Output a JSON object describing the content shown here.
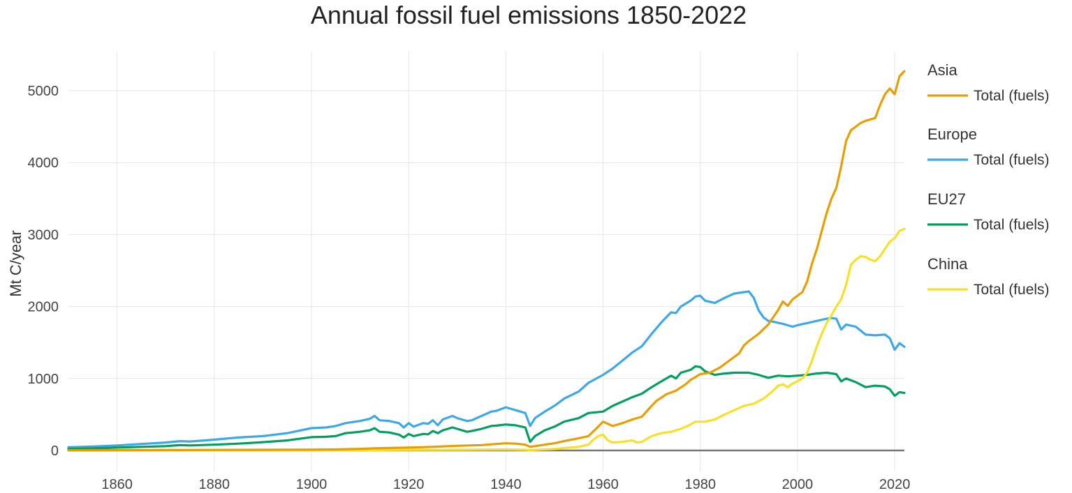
{
  "chart_data": {
    "type": "line",
    "title": "Annual fossil fuel emissions 1850-2022",
    "xlabel": "",
    "ylabel": "Mt C/year",
    "xlim": [
      1850,
      2022
    ],
    "ylim": [
      -100,
      5400
    ],
    "x_ticks": [
      1860,
      1880,
      1900,
      1920,
      1940,
      1960,
      1980,
      2000,
      2020
    ],
    "y_ticks": [
      0,
      1000,
      2000,
      3000,
      4000,
      5000
    ],
    "grid": true,
    "legend_position": "right",
    "series": [
      {
        "name": "Asia",
        "legend_label": "Total (fuels)",
        "color": "#E69F00",
        "points": [
          [
            1850,
            2
          ],
          [
            1860,
            4
          ],
          [
            1870,
            6
          ],
          [
            1880,
            8
          ],
          [
            1890,
            10
          ],
          [
            1900,
            12
          ],
          [
            1905,
            15
          ],
          [
            1910,
            22
          ],
          [
            1913,
            30
          ],
          [
            1920,
            40
          ],
          [
            1925,
            50
          ],
          [
            1930,
            65
          ],
          [
            1935,
            75
          ],
          [
            1938,
            90
          ],
          [
            1940,
            100
          ],
          [
            1942,
            95
          ],
          [
            1944,
            80
          ],
          [
            1945,
            50
          ],
          [
            1946,
            60
          ],
          [
            1948,
            80
          ],
          [
            1950,
            100
          ],
          [
            1952,
            130
          ],
          [
            1955,
            170
          ],
          [
            1957,
            200
          ],
          [
            1959,
            330
          ],
          [
            1960,
            400
          ],
          [
            1961,
            370
          ],
          [
            1962,
            340
          ],
          [
            1964,
            380
          ],
          [
            1966,
            430
          ],
          [
            1968,
            470
          ],
          [
            1970,
            620
          ],
          [
            1971,
            690
          ],
          [
            1973,
            780
          ],
          [
            1975,
            830
          ],
          [
            1977,
            920
          ],
          [
            1978,
            980
          ],
          [
            1980,
            1060
          ],
          [
            1982,
            1080
          ],
          [
            1984,
            1150
          ],
          [
            1986,
            1250
          ],
          [
            1988,
            1350
          ],
          [
            1989,
            1460
          ],
          [
            1990,
            1520
          ],
          [
            1992,
            1620
          ],
          [
            1994,
            1750
          ],
          [
            1996,
            1950
          ],
          [
            1997,
            2070
          ],
          [
            1998,
            2010
          ],
          [
            1999,
            2100
          ],
          [
            2000,
            2150
          ],
          [
            2001,
            2200
          ],
          [
            2002,
            2350
          ],
          [
            2003,
            2600
          ],
          [
            2004,
            2800
          ],
          [
            2005,
            3050
          ],
          [
            2006,
            3300
          ],
          [
            2007,
            3500
          ],
          [
            2008,
            3650
          ],
          [
            2009,
            3950
          ],
          [
            2010,
            4300
          ],
          [
            2011,
            4450
          ],
          [
            2012,
            4500
          ],
          [
            2013,
            4550
          ],
          [
            2014,
            4580
          ],
          [
            2015,
            4600
          ],
          [
            2016,
            4620
          ],
          [
            2017,
            4800
          ],
          [
            2018,
            4950
          ],
          [
            2019,
            5030
          ],
          [
            2020,
            4950
          ],
          [
            2021,
            5200
          ],
          [
            2022,
            5270
          ]
        ]
      },
      {
        "name": "Europe",
        "legend_label": "Total (fuels)",
        "color": "#3EA8E5",
        "points": [
          [
            1850,
            45
          ],
          [
            1855,
            55
          ],
          [
            1860,
            70
          ],
          [
            1865,
            90
          ],
          [
            1870,
            110
          ],
          [
            1873,
            130
          ],
          [
            1875,
            125
          ],
          [
            1878,
            140
          ],
          [
            1880,
            150
          ],
          [
            1885,
            180
          ],
          [
            1890,
            200
          ],
          [
            1895,
            240
          ],
          [
            1900,
            310
          ],
          [
            1903,
            320
          ],
          [
            1905,
            340
          ],
          [
            1907,
            380
          ],
          [
            1910,
            410
          ],
          [
            1912,
            440
          ],
          [
            1913,
            480
          ],
          [
            1914,
            420
          ],
          [
            1916,
            410
          ],
          [
            1918,
            380
          ],
          [
            1919,
            320
          ],
          [
            1920,
            380
          ],
          [
            1921,
            330
          ],
          [
            1923,
            380
          ],
          [
            1924,
            370
          ],
          [
            1925,
            420
          ],
          [
            1926,
            350
          ],
          [
            1927,
            430
          ],
          [
            1929,
            480
          ],
          [
            1930,
            450
          ],
          [
            1932,
            410
          ],
          [
            1933,
            420
          ],
          [
            1935,
            480
          ],
          [
            1937,
            540
          ],
          [
            1938,
            550
          ],
          [
            1940,
            600
          ],
          [
            1942,
            560
          ],
          [
            1944,
            520
          ],
          [
            1945,
            340
          ],
          [
            1946,
            450
          ],
          [
            1948,
            540
          ],
          [
            1950,
            620
          ],
          [
            1952,
            720
          ],
          [
            1955,
            820
          ],
          [
            1957,
            940
          ],
          [
            1960,
            1050
          ],
          [
            1962,
            1140
          ],
          [
            1964,
            1250
          ],
          [
            1966,
            1360
          ],
          [
            1968,
            1450
          ],
          [
            1970,
            1620
          ],
          [
            1972,
            1780
          ],
          [
            1974,
            1920
          ],
          [
            1975,
            1910
          ],
          [
            1976,
            2000
          ],
          [
            1978,
            2080
          ],
          [
            1979,
            2140
          ],
          [
            1980,
            2150
          ],
          [
            1981,
            2080
          ],
          [
            1983,
            2050
          ],
          [
            1985,
            2120
          ],
          [
            1987,
            2180
          ],
          [
            1989,
            2200
          ],
          [
            1990,
            2210
          ],
          [
            1991,
            2120
          ],
          [
            1992,
            1950
          ],
          [
            1993,
            1850
          ],
          [
            1994,
            1800
          ],
          [
            1995,
            1790
          ],
          [
            1997,
            1760
          ],
          [
            1999,
            1720
          ],
          [
            2000,
            1740
          ],
          [
            2002,
            1770
          ],
          [
            2004,
            1800
          ],
          [
            2006,
            1830
          ],
          [
            2007,
            1840
          ],
          [
            2008,
            1830
          ],
          [
            2009,
            1680
          ],
          [
            2010,
            1750
          ],
          [
            2012,
            1720
          ],
          [
            2014,
            1610
          ],
          [
            2016,
            1600
          ],
          [
            2018,
            1610
          ],
          [
            2019,
            1560
          ],
          [
            2020,
            1400
          ],
          [
            2021,
            1490
          ],
          [
            2022,
            1440
          ]
        ]
      },
      {
        "name": "EU27",
        "legend_label": "Total (fuels)",
        "color": "#009E60",
        "points": [
          [
            1850,
            20
          ],
          [
            1855,
            28
          ],
          [
            1860,
            40
          ],
          [
            1865,
            50
          ],
          [
            1870,
            60
          ],
          [
            1873,
            75
          ],
          [
            1875,
            70
          ],
          [
            1880,
            80
          ],
          [
            1885,
            95
          ],
          [
            1890,
            115
          ],
          [
            1895,
            140
          ],
          [
            1900,
            185
          ],
          [
            1903,
            190
          ],
          [
            1905,
            200
          ],
          [
            1907,
            240
          ],
          [
            1910,
            260
          ],
          [
            1912,
            280
          ],
          [
            1913,
            310
          ],
          [
            1914,
            260
          ],
          [
            1916,
            250
          ],
          [
            1918,
            220
          ],
          [
            1919,
            180
          ],
          [
            1920,
            230
          ],
          [
            1921,
            200
          ],
          [
            1923,
            230
          ],
          [
            1924,
            225
          ],
          [
            1925,
            270
          ],
          [
            1926,
            240
          ],
          [
            1927,
            280
          ],
          [
            1929,
            320
          ],
          [
            1930,
            300
          ],
          [
            1932,
            260
          ],
          [
            1933,
            270
          ],
          [
            1935,
            300
          ],
          [
            1937,
            340
          ],
          [
            1938,
            345
          ],
          [
            1940,
            360
          ],
          [
            1942,
            350
          ],
          [
            1944,
            320
          ],
          [
            1945,
            120
          ],
          [
            1946,
            200
          ],
          [
            1948,
            280
          ],
          [
            1950,
            330
          ],
          [
            1952,
            400
          ],
          [
            1955,
            450
          ],
          [
            1957,
            520
          ],
          [
            1960,
            540
          ],
          [
            1962,
            620
          ],
          [
            1964,
            680
          ],
          [
            1966,
            740
          ],
          [
            1968,
            790
          ],
          [
            1970,
            880
          ],
          [
            1972,
            960
          ],
          [
            1974,
            1040
          ],
          [
            1975,
            1000
          ],
          [
            1976,
            1080
          ],
          [
            1978,
            1120
          ],
          [
            1979,
            1170
          ],
          [
            1980,
            1160
          ],
          [
            1981,
            1100
          ],
          [
            1983,
            1050
          ],
          [
            1985,
            1070
          ],
          [
            1987,
            1080
          ],
          [
            1990,
            1080
          ],
          [
            1992,
            1050
          ],
          [
            1994,
            1010
          ],
          [
            1996,
            1040
          ],
          [
            1998,
            1030
          ],
          [
            2000,
            1040
          ],
          [
            2002,
            1050
          ],
          [
            2004,
            1070
          ],
          [
            2006,
            1080
          ],
          [
            2008,
            1060
          ],
          [
            2009,
            960
          ],
          [
            2010,
            1000
          ],
          [
            2012,
            950
          ],
          [
            2014,
            880
          ],
          [
            2016,
            900
          ],
          [
            2018,
            890
          ],
          [
            2019,
            850
          ],
          [
            2020,
            760
          ],
          [
            2021,
            810
          ],
          [
            2022,
            800
          ]
        ]
      },
      {
        "name": "China",
        "legend_label": "Total (fuels)",
        "color": "#F5E12A",
        "points": [
          [
            1850,
            0
          ],
          [
            1900,
            2
          ],
          [
            1910,
            5
          ],
          [
            1920,
            8
          ],
          [
            1930,
            10
          ],
          [
            1940,
            15
          ],
          [
            1944,
            10
          ],
          [
            1945,
            5
          ],
          [
            1950,
            20
          ],
          [
            1955,
            50
          ],
          [
            1957,
            80
          ],
          [
            1958,
            150
          ],
          [
            1959,
            200
          ],
          [
            1960,
            220
          ],
          [
            1961,
            140
          ],
          [
            1962,
            110
          ],
          [
            1964,
            120
          ],
          [
            1966,
            140
          ],
          [
            1967,
            110
          ],
          [
            1968,
            120
          ],
          [
            1970,
            200
          ],
          [
            1972,
            240
          ],
          [
            1974,
            260
          ],
          [
            1976,
            300
          ],
          [
            1978,
            360
          ],
          [
            1979,
            400
          ],
          [
            1981,
            400
          ],
          [
            1983,
            430
          ],
          [
            1985,
            500
          ],
          [
            1987,
            560
          ],
          [
            1989,
            620
          ],
          [
            1991,
            650
          ],
          [
            1993,
            720
          ],
          [
            1995,
            830
          ],
          [
            1996,
            900
          ],
          [
            1997,
            920
          ],
          [
            1998,
            880
          ],
          [
            1999,
            930
          ],
          [
            2000,
            960
          ],
          [
            2001,
            1000
          ],
          [
            2002,
            1080
          ],
          [
            2003,
            1250
          ],
          [
            2004,
            1450
          ],
          [
            2005,
            1620
          ],
          [
            2006,
            1770
          ],
          [
            2007,
            1880
          ],
          [
            2008,
            2000
          ],
          [
            2009,
            2100
          ],
          [
            2010,
            2300
          ],
          [
            2011,
            2580
          ],
          [
            2012,
            2650
          ],
          [
            2013,
            2700
          ],
          [
            2014,
            2690
          ],
          [
            2015,
            2650
          ],
          [
            2016,
            2630
          ],
          [
            2017,
            2700
          ],
          [
            2018,
            2800
          ],
          [
            2019,
            2900
          ],
          [
            2020,
            2950
          ],
          [
            2021,
            3050
          ],
          [
            2022,
            3080
          ]
        ]
      }
    ]
  }
}
